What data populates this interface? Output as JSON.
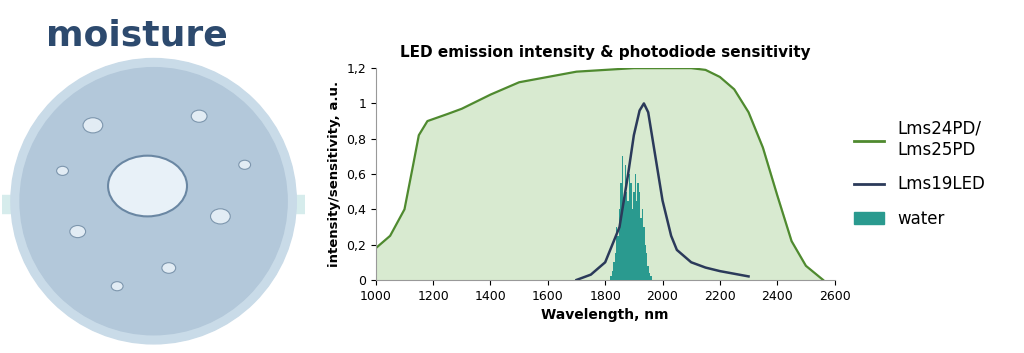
{
  "chart_data": {
    "type": "line",
    "title": "LED emission intensity & photodiode sensitivity",
    "x_label": "Wavelength, nm",
    "y_label": "intensity/sensitivity, a.u.",
    "annotations": [
      "moisture"
    ],
    "xlim": [
      1000,
      2600
    ],
    "xticks": [
      1000,
      1200,
      1400,
      1600,
      1800,
      2000,
      2200,
      2400,
      2600
    ],
    "ylim": [
      0,
      1.2
    ],
    "yticks": [
      0,
      {
        "value": 0.2,
        "label": "0,2"
      },
      {
        "value": 0.4,
        "label": "0,4"
      },
      {
        "value": 0.6,
        "label": "0,6"
      },
      {
        "value": 0.8,
        "label": "0,8"
      },
      1,
      {
        "value": 1.2,
        "label": "1,2"
      }
    ],
    "grid": false,
    "legend": "right",
    "series": [
      {
        "name": "Lms24PD/\nLms25PD",
        "type": "area",
        "color": "#4f8a2f",
        "x": [
          1000,
          1050,
          1100,
          1130,
          1150,
          1180,
          1250,
          1300,
          1400,
          1500,
          1600,
          1700,
          1800,
          1900,
          2000,
          2100,
          2150,
          2200,
          2250,
          2300,
          2350,
          2400,
          2450,
          2500,
          2560
        ],
        "values": [
          0.18,
          0.25,
          0.4,
          0.65,
          0.82,
          0.9,
          0.94,
          0.97,
          1.05,
          1.12,
          1.15,
          1.18,
          1.19,
          1.2,
          1.2,
          1.2,
          1.19,
          1.15,
          1.08,
          0.95,
          0.75,
          0.48,
          0.22,
          0.08,
          0.0
        ]
      },
      {
        "name": "Lms19LED",
        "type": "line",
        "color": "#2b3a5a",
        "x": [
          1700,
          1750,
          1800,
          1850,
          1880,
          1900,
          1920,
          1935,
          1950,
          1970,
          2000,
          2030,
          2050,
          2100,
          2150,
          2200,
          2300
        ],
        "values": [
          0.0,
          0.03,
          0.1,
          0.3,
          0.6,
          0.82,
          0.96,
          1.0,
          0.95,
          0.75,
          0.45,
          0.25,
          0.17,
          0.1,
          0.07,
          0.05,
          0.02
        ]
      },
      {
        "name": "water",
        "type": "bar",
        "color": "#2a9a8f",
        "x": [
          1820,
          1825,
          1830,
          1835,
          1840,
          1845,
          1850,
          1855,
          1860,
          1865,
          1870,
          1875,
          1880,
          1885,
          1890,
          1895,
          1900,
          1905,
          1910,
          1915,
          1920,
          1925,
          1930,
          1935,
          1940,
          1945,
          1950,
          1955,
          1960
        ],
        "values": [
          0.02,
          0.05,
          0.1,
          0.15,
          0.3,
          0.25,
          0.4,
          0.55,
          0.7,
          0.45,
          0.65,
          0.5,
          0.45,
          0.6,
          0.55,
          0.4,
          0.5,
          0.6,
          0.45,
          0.55,
          0.5,
          0.35,
          0.4,
          0.3,
          0.2,
          0.15,
          0.08,
          0.04,
          0.02
        ]
      }
    ]
  }
}
